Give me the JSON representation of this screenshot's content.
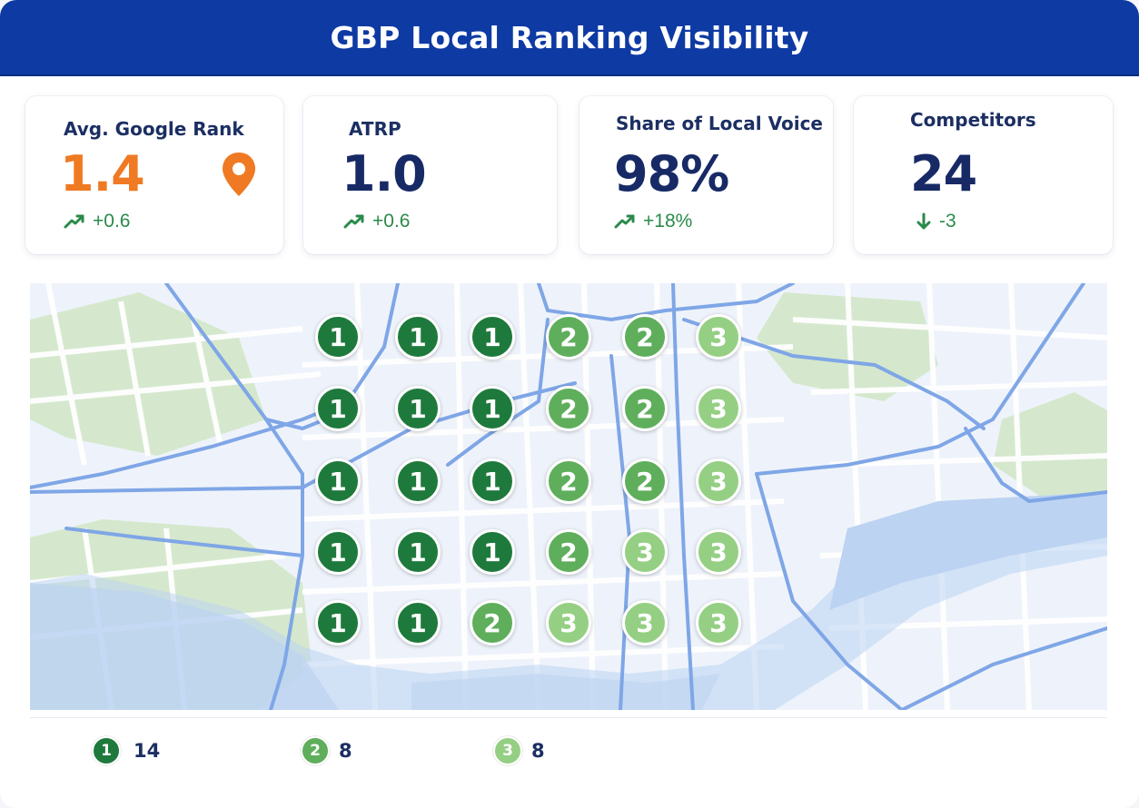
{
  "title": "GBP Local Ranking Visibility",
  "kpis": [
    {
      "label": "Avg. Google Rank",
      "value": "1.4",
      "delta": "+0.6",
      "trend": "up",
      "value_color": "#ef7a23",
      "icon": "location-pin-icon"
    },
    {
      "label": "ATRP",
      "value": "1.0",
      "delta": "+0.6",
      "trend": "up"
    },
    {
      "label": "Share of Local Voice",
      "value": "98%",
      "delta": "+18%",
      "trend": "up"
    },
    {
      "label": "Competitors",
      "value": "24",
      "delta": "-3",
      "trend": "down"
    }
  ],
  "grid": {
    "rows": [
      [
        "1",
        "1",
        "1",
        "2",
        "2",
        "3"
      ],
      [
        "1",
        "1",
        "1",
        "2",
        "2",
        "3"
      ],
      [
        "1",
        "1",
        "1",
        "2",
        "2",
        "3"
      ],
      [
        "1",
        "1",
        "1",
        "2",
        "3",
        "3"
      ],
      [
        "1",
        "1",
        "2",
        "3",
        "3",
        "3"
      ]
    ]
  },
  "legend": [
    {
      "rank": "1",
      "count": "14"
    },
    {
      "rank": "2",
      "count": "8"
    },
    {
      "rank": "3",
      "count": "8"
    }
  ],
  "colors": {
    "header": "#0e3aa3",
    "rank_1": "#1e7a3c",
    "rank_2": "#5fae5c",
    "rank_3": "#95cf83",
    "positive": "#2a8a4a",
    "accent_orange": "#ef7a23"
  }
}
